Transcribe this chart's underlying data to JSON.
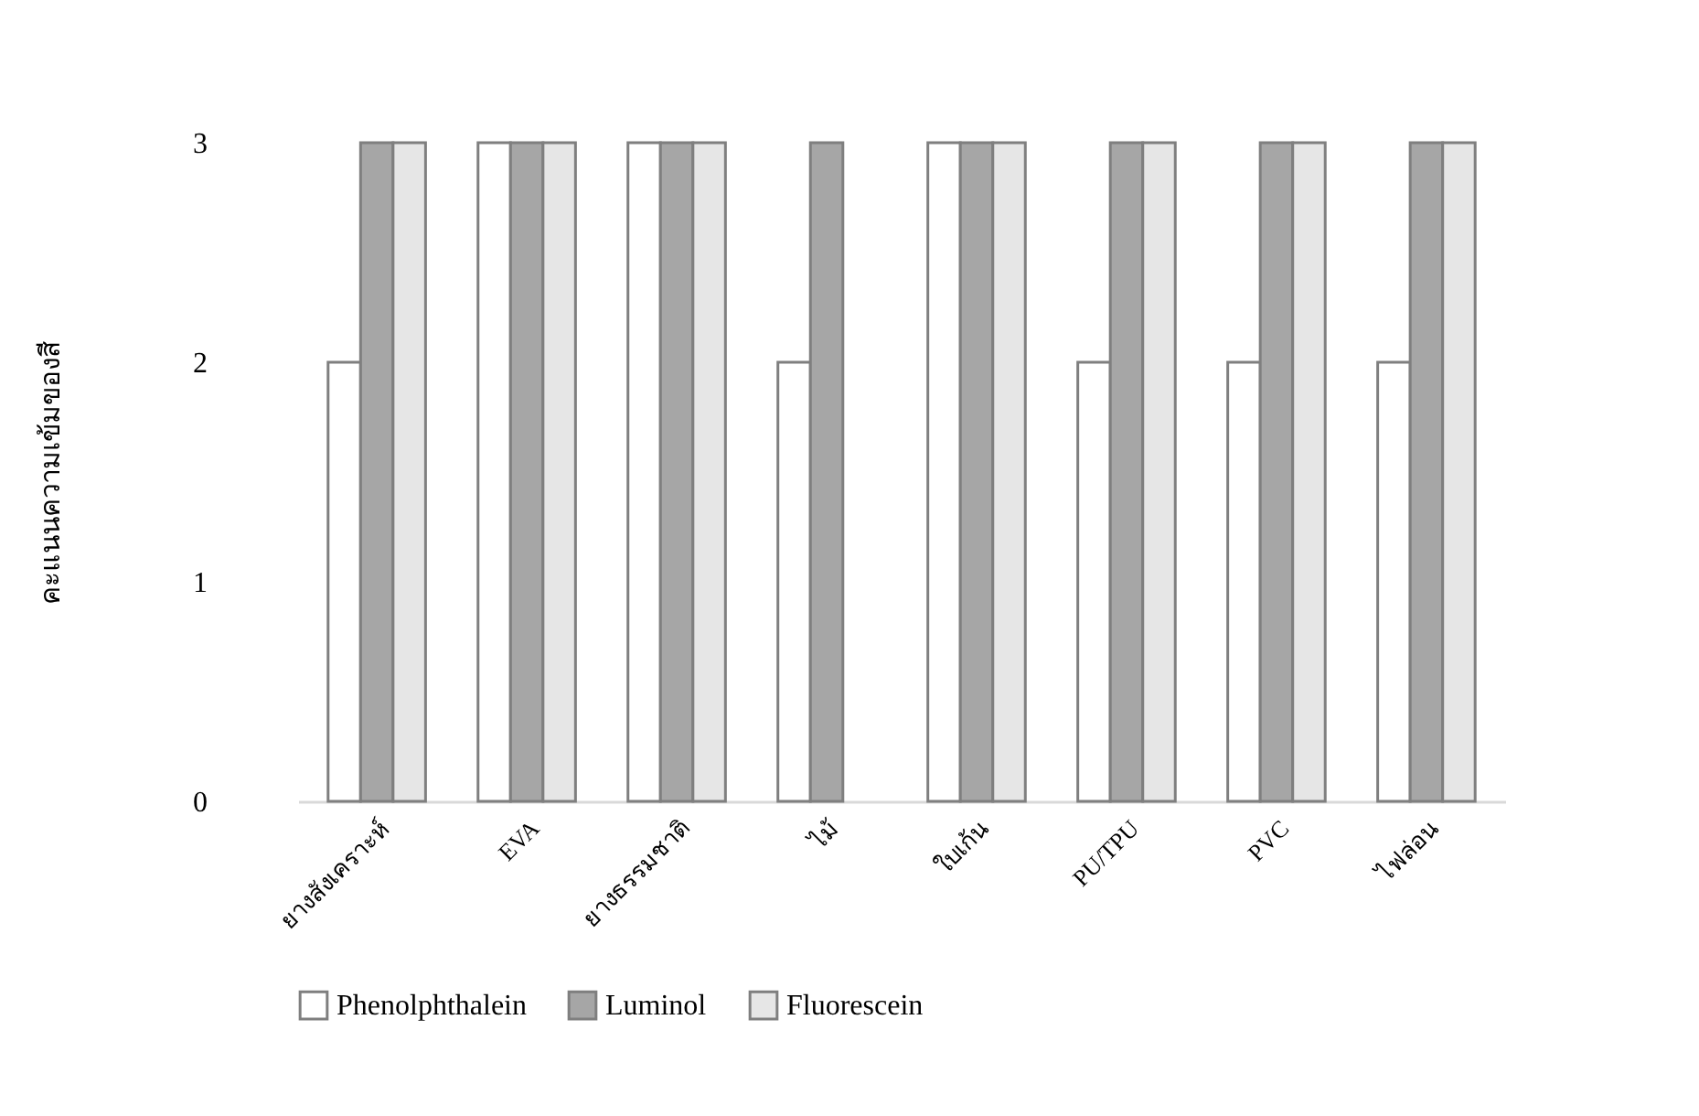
{
  "chart_data": {
    "type": "bar",
    "ylabel": "คะแนนความเข้มของสี",
    "categories": [
      "ยางสังเคราะห์",
      "EVA",
      "ยางธรรมชาติ",
      "ไม้",
      "ใบเก้น",
      "PU/TPU",
      "PVC",
      "ไฟล่อน"
    ],
    "series": [
      {
        "name": "Phenolphthalein",
        "color": "#ffffff",
        "values": [
          2,
          3,
          3,
          2,
          3,
          2,
          2,
          2
        ]
      },
      {
        "name": "Luminol",
        "color": "#a6a6a6",
        "values": [
          3,
          3,
          3,
          3,
          3,
          3,
          3,
          3
        ]
      },
      {
        "name": "Fluorescein",
        "color": "#e6e6e6",
        "values": [
          3,
          3,
          3,
          null,
          3,
          3,
          3,
          3
        ]
      }
    ],
    "ylim": [
      0,
      3
    ],
    "yticks": [
      0,
      1,
      2,
      3
    ],
    "grid": false,
    "legend": "bottom"
  }
}
